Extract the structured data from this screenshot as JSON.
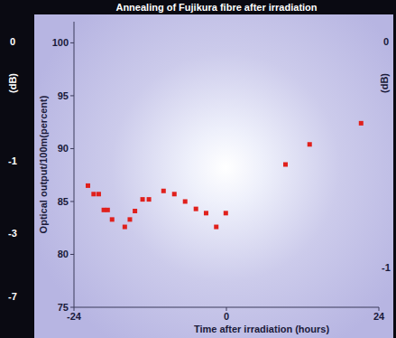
{
  "chart_data": {
    "type": "scatter",
    "title": "Annealing of Fujikura fibre after irradiation",
    "x_label": "Time after irradiation (hours)",
    "y_label": "Optical output/100m(percent)",
    "x": [
      -21.8,
      -20.9,
      -20.1,
      -19.3,
      -18.7,
      -18.0,
      -16.0,
      -15.2,
      -14.4,
      -13.2,
      -12.2,
      -9.9,
      -8.2,
      -6.5,
      -4.8,
      -3.2,
      -1.6,
      -0.1,
      9.3,
      13.1,
      21.2
    ],
    "values": [
      86.5,
      85.7,
      85.7,
      84.2,
      84.2,
      83.3,
      82.6,
      83.3,
      84.1,
      85.2,
      85.2,
      86.0,
      85.7,
      85.0,
      84.3,
      83.9,
      82.6,
      83.9,
      88.5,
      90.4,
      92.4
    ],
    "color": "#e0201c",
    "marker": "square",
    "xlim": [
      -24,
      24
    ],
    "xticks": [
      -24,
      0,
      24
    ],
    "ylim": [
      75,
      102
    ],
    "yticks": [
      75,
      80,
      85,
      90,
      95,
      100
    ],
    "grid": false
  },
  "side_labels": {
    "left": [
      "0",
      "(dB)",
      "-1",
      "-3",
      "-7"
    ],
    "right": [
      "0",
      "(dB)",
      "-1"
    ]
  }
}
